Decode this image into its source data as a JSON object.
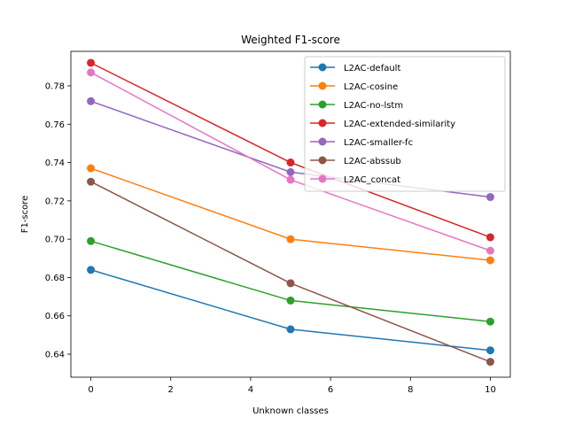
{
  "chart_data": {
    "type": "line",
    "title": "Weighted F1-score",
    "xlabel": "Unknown classes",
    "ylabel": "F1-score",
    "x": [
      0,
      5,
      10
    ],
    "xlim": [
      -0.5,
      10.5
    ],
    "ylim": [
      0.628,
      0.798
    ],
    "xticks": [
      0,
      2,
      4,
      6,
      8,
      10
    ],
    "yticks": [
      0.64,
      0.66,
      0.68,
      0.7,
      0.72,
      0.74,
      0.76,
      0.78
    ],
    "grid": false,
    "legend_position": "top-right",
    "series": [
      {
        "name": "L2AC-default",
        "color": "#1f77b4",
        "values": [
          0.684,
          0.653,
          0.642
        ]
      },
      {
        "name": "L2AC-cosine",
        "color": "#ff7f0e",
        "values": [
          0.737,
          0.7,
          0.689
        ]
      },
      {
        "name": "L2AC-no-lstm",
        "color": "#2ca02c",
        "values": [
          0.699,
          0.668,
          0.657
        ]
      },
      {
        "name": "L2AC-extended-similarity",
        "color": "#d62728",
        "values": [
          0.792,
          0.74,
          0.701
        ]
      },
      {
        "name": "L2AC-smaller-fc",
        "color": "#9467bd",
        "values": [
          0.772,
          0.735,
          0.722
        ]
      },
      {
        "name": "L2AC-abssub",
        "color": "#8c564b",
        "values": [
          0.73,
          0.677,
          0.636
        ]
      },
      {
        "name": "L2AC_concat",
        "color": "#e377c2",
        "values": [
          0.787,
          0.731,
          0.694
        ]
      }
    ]
  }
}
